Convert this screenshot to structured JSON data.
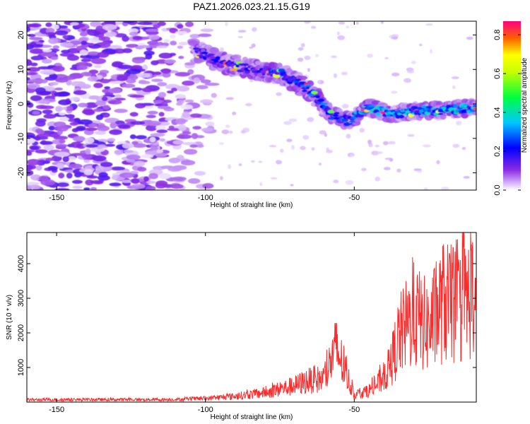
{
  "chart_data": [
    {
      "type": "heatmap",
      "title": "PAZ1.2026.023.21.15.G19",
      "xlabel": "Height of straight line (km)",
      "ylabel": "Frequency (Hz)",
      "xlim": [
        -160,
        -9
      ],
      "ylim": [
        -25,
        24
      ],
      "xticks": [
        -150,
        -100,
        -50
      ],
      "yticks": [
        20,
        10,
        0,
        -10,
        -20
      ],
      "colorbar": {
        "label": "Normalized spectral amplitude",
        "range": [
          0,
          0.87
        ],
        "ticks": [
          "0.0",
          "0.2",
          "0.4",
          "0.6",
          "0.8"
        ],
        "tick_values": [
          0.0,
          0.2,
          0.4,
          0.6,
          0.8
        ]
      },
      "ridge": {
        "description_points_km_hz": [
          [
            -102,
            15
          ],
          [
            -95,
            12
          ],
          [
            -85,
            10
          ],
          [
            -75,
            9
          ],
          [
            -65,
            4
          ],
          [
            -58,
            -3
          ],
          [
            -52,
            -5
          ],
          [
            -45,
            -1
          ],
          [
            -38,
            -3
          ],
          [
            -30,
            -2
          ],
          [
            -20,
            -2
          ],
          [
            -10,
            -1
          ]
        ]
      }
    },
    {
      "type": "line",
      "xlabel": "Height of straight line (km)",
      "ylabel": "SNR (10 * v/v)",
      "xlim": [
        -160,
        -9
      ],
      "ylim": [
        0,
        4900
      ],
      "xticks": [
        -150,
        -100,
        -50
      ],
      "yticks": [
        1000,
        2000,
        3000,
        4000
      ],
      "envelope": {
        "x": [
          -160,
          -110,
          -100,
          -90,
          -80,
          -70,
          -66,
          -60,
          -58,
          -56,
          -50,
          -45,
          -42,
          -38,
          -35,
          -30,
          -25,
          -20,
          -15,
          -10,
          -9
        ],
        "y": [
          100,
          110,
          150,
          250,
          400,
          700,
          900,
          1000,
          1700,
          2300,
          300,
          500,
          800,
          1500,
          2800,
          3700,
          3200,
          4300,
          4000,
          4700,
          3300
        ]
      }
    }
  ]
}
